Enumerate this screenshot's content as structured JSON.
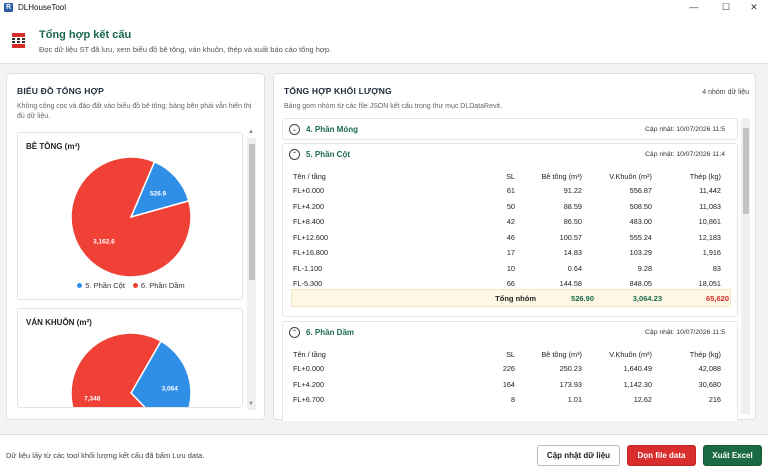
{
  "window": {
    "title": "DLHouseTool",
    "app_icon_letter": "R",
    "minimize": "—",
    "maximize": "☐",
    "close": "✕"
  },
  "header": {
    "title": "Tổng hợp kết cấu",
    "subtitle": "Đọc dữ liệu ST đã lưu, xem biểu đồ bê tông, ván khuôn, thép và xuất báo cáo tổng hợp."
  },
  "left_panel": {
    "title": "BIỂU ĐỒ TỔNG HỢP",
    "description": "Không công cọc và đào đất vào biểu đồ bê tông; bảng bên phải vẫn hiển thị đủ dữ liệu."
  },
  "chart_data": [
    {
      "type": "pie",
      "title": "BÊ TÔNG (m³)",
      "series": [
        {
          "name": "5. Phần Cột",
          "value": 526.9,
          "label": "526.9",
          "color": "#2f8fe6"
        },
        {
          "name": "6. Phần Dầm",
          "value": 3162.6,
          "label": "3,162.6",
          "color": "#ef4136"
        }
      ]
    },
    {
      "type": "pie",
      "title": "VÁN KHUÔN (m²)",
      "series": [
        {
          "name": "5. Phần Cột",
          "value": 3064,
          "label": "3,064",
          "color": "#2f8fe6"
        },
        {
          "name": "6. Phần Dầm",
          "value": 7348,
          "label": "7,348",
          "color": "#ef4136"
        }
      ]
    }
  ],
  "legend": [
    {
      "label": "5. Phần Cột",
      "color": "#2f8fe6"
    },
    {
      "label": "6. Phần Dầm",
      "color": "#ef4136"
    }
  ],
  "right_panel": {
    "title": "TỔNG HỢP KHỐI LƯỢNG",
    "description": "Bảng gom nhóm từ các file JSON kết cấu trong thư mục DLDataRevit.",
    "badge": "4 nhóm dữ liệu"
  },
  "columns": [
    "Tên / tầng",
    "SL",
    "Bê tông (m³)",
    "V.Khuôn (m²)",
    "Thép (kg)"
  ],
  "groups": [
    {
      "name": "4. Phần Móng",
      "toggle": "⌄",
      "updated": "Cập nhật: 10/07/2026 11:5"
    },
    {
      "name": "5. Phần Cột",
      "toggle": "⌃",
      "updated": "Cập nhật: 10/07/2026 11:4",
      "rows": [
        [
          "FL+0.000",
          "61",
          "91.22",
          "556.87",
          "11,442"
        ],
        [
          "FL+4.200",
          "50",
          "88.59",
          "508.50",
          "11,083"
        ],
        [
          "FL+8.400",
          "42",
          "86.50",
          "483.00",
          "10,861"
        ],
        [
          "FL+12.600",
          "46",
          "100.57",
          "555.24",
          "12,183"
        ],
        [
          "FL+16.800",
          "17",
          "14.83",
          "103.29",
          "1,916"
        ],
        [
          "FL-1.100",
          "10",
          "0.64",
          "9.28",
          "83"
        ],
        [
          "FL-5.300",
          "66",
          "144.58",
          "848.05",
          "18,051"
        ]
      ],
      "total": {
        "label": "Tổng nhóm",
        "concrete": "526.90",
        "formwork": "3,064.23",
        "steel": "65,620"
      }
    },
    {
      "name": "6. Phần Dầm",
      "toggle": "⌃",
      "updated": "Cập nhật: 10/07/2026 11:5",
      "rows": [
        [
          "FL+0.000",
          "226",
          "250.23",
          "1,640.49",
          "42,088"
        ],
        [
          "FL+4.200",
          "164",
          "173.93",
          "1,142.30",
          "30,680"
        ],
        [
          "FL+6.700",
          "8",
          "1.01",
          "12.62",
          "216"
        ]
      ]
    }
  ],
  "footer": {
    "note": "Dữ liệu lấy từ các tool khối lượng kết cấu đã bấm Lưu data.",
    "update_button": "Cập nhật dữ liệu",
    "clean_button": "Dọn file data",
    "export_button": "Xuất Excel"
  }
}
